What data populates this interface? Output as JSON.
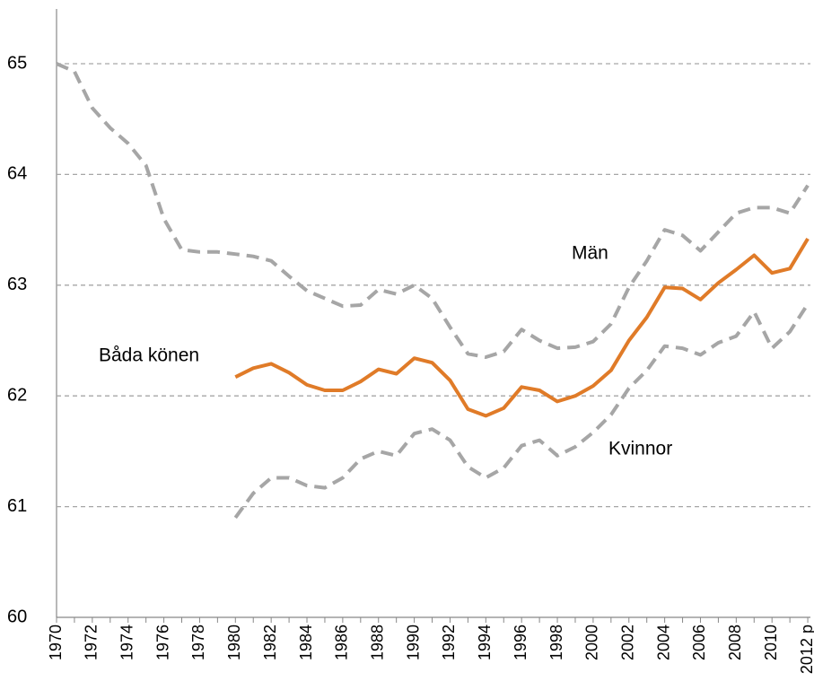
{
  "chart_data": {
    "type": "line",
    "categories": [
      "1970",
      null,
      "1972",
      null,
      "1974",
      null,
      "1976",
      null,
      "1978",
      null,
      "1980",
      null,
      "1982",
      null,
      "1984",
      null,
      "1986",
      null,
      "1988",
      null,
      "1990",
      null,
      "1992",
      null,
      "1994",
      null,
      "1996",
      null,
      "1998",
      null,
      "2000",
      null,
      "2002",
      null,
      "2004",
      null,
      "2006",
      null,
      "2008",
      null,
      "2010",
      null,
      "2012 p"
    ],
    "series": [
      {
        "name": "Män",
        "color": "#a6a6a6",
        "dashed": true,
        "values": [
          65.0,
          64.93,
          64.6,
          64.42,
          64.28,
          64.08,
          63.6,
          63.32,
          63.3,
          63.3,
          63.28,
          63.26,
          63.22,
          63.08,
          62.95,
          62.88,
          62.81,
          62.82,
          62.96,
          62.92,
          63.0,
          62.88,
          62.62,
          62.38,
          62.35,
          62.4,
          62.6,
          62.5,
          62.43,
          62.44,
          62.49,
          62.65,
          62.98,
          63.22,
          63.5,
          63.45,
          63.31,
          63.48,
          63.65,
          63.7,
          63.7,
          63.65,
          63.9
        ]
      },
      {
        "name": "Kvinnor",
        "color": "#a6a6a6",
        "dashed": true,
        "values": [
          null,
          null,
          null,
          null,
          null,
          null,
          null,
          null,
          null,
          null,
          60.9,
          61.12,
          61.26,
          61.26,
          61.19,
          61.17,
          61.26,
          61.43,
          61.5,
          61.46,
          61.66,
          61.7,
          61.6,
          61.36,
          61.26,
          61.35,
          61.55,
          61.6,
          61.46,
          61.54,
          61.67,
          61.83,
          62.07,
          62.23,
          62.45,
          62.43,
          62.37,
          62.48,
          62.54,
          62.76,
          62.43,
          62.58,
          62.83
        ]
      },
      {
        "name": "Båda könen",
        "color": "#e07b28",
        "dashed": false,
        "values": [
          null,
          null,
          null,
          null,
          null,
          null,
          null,
          null,
          null,
          null,
          62.17,
          62.25,
          62.29,
          62.21,
          62.1,
          62.05,
          62.05,
          62.13,
          62.24,
          62.2,
          62.34,
          62.3,
          62.14,
          61.88,
          61.82,
          61.89,
          62.08,
          62.05,
          61.95,
          62.0,
          62.09,
          62.23,
          62.5,
          62.71,
          62.98,
          62.97,
          62.87,
          63.02,
          63.14,
          63.27,
          63.11,
          63.15,
          63.42
        ]
      }
    ],
    "ylim": [
      60,
      65
    ],
    "yticks": [
      60,
      61,
      62,
      63,
      64,
      65
    ],
    "grid": true
  }
}
